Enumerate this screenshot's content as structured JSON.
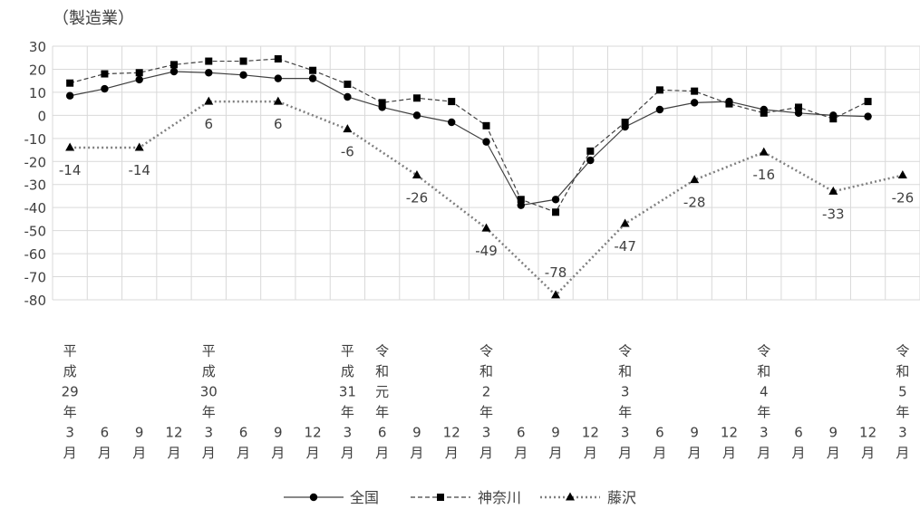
{
  "chart_data": {
    "type": "line",
    "title": "（製造業）",
    "ylim": [
      -80,
      30
    ],
    "yticks": [
      30,
      20,
      10,
      0,
      -10,
      -20,
      -30,
      -40,
      -50,
      -60,
      -70,
      -80
    ],
    "grid": true,
    "legend_position": "bottom",
    "categories": [
      "平成29年3月",
      "6月",
      "9月",
      "12月",
      "平成30年3月",
      "6月",
      "9月",
      "12月",
      "平成31年3月",
      "令和元年6月",
      "9月",
      "12月",
      "令和2年3月",
      "6月",
      "9月",
      "12月",
      "令和3年3月",
      "6月",
      "9月",
      "12月",
      "令和4年3月",
      "6月",
      "9月",
      "12月",
      "令和5年3月"
    ],
    "category_label_lines": [
      [
        "平",
        "成",
        "29",
        "年",
        "3",
        "月"
      ],
      [
        "6",
        "月"
      ],
      [
        "9",
        "月"
      ],
      [
        "12",
        "月"
      ],
      [
        "平",
        "成",
        "30",
        "年",
        "3",
        "月"
      ],
      [
        "6",
        "月"
      ],
      [
        "9",
        "月"
      ],
      [
        "12",
        "月"
      ],
      [
        "平",
        "成",
        "31",
        "年",
        "3",
        "月"
      ],
      [
        "令",
        "和",
        "元",
        "年",
        "6",
        "月"
      ],
      [
        "9",
        "月"
      ],
      [
        "12",
        "月"
      ],
      [
        "令",
        "和",
        "2",
        "年",
        "3",
        "月"
      ],
      [
        "6",
        "月"
      ],
      [
        "9",
        "月"
      ],
      [
        "12",
        "月"
      ],
      [
        "令",
        "和",
        "3",
        "年",
        "3",
        "月"
      ],
      [
        "6",
        "月"
      ],
      [
        "9",
        "月"
      ],
      [
        "12",
        "月"
      ],
      [
        "令",
        "和",
        "4",
        "年",
        "3",
        "月"
      ],
      [
        "6",
        "月"
      ],
      [
        "9",
        "月"
      ],
      [
        "12",
        "月"
      ],
      [
        "令",
        "和",
        "5",
        "年",
        "3",
        "月"
      ]
    ],
    "series": [
      {
        "name": "全国",
        "marker": "circle",
        "dash": "solid",
        "color": "#404040",
        "values": [
          8.5,
          11.5,
          15.5,
          19,
          18.5,
          17.5,
          16,
          16,
          8,
          3.5,
          0,
          -3,
          -11.5,
          -39,
          -36.5,
          -19.5,
          -5,
          2.5,
          5.5,
          6,
          2.5,
          1,
          0,
          -0.5,
          null
        ]
      },
      {
        "name": "神奈川",
        "marker": "square",
        "dash": "dashed",
        "color": "#404040",
        "values": [
          14,
          18,
          18.5,
          22,
          23.5,
          23.5,
          24.5,
          19.5,
          13.5,
          5.5,
          7.5,
          6,
          -4.5,
          -36.5,
          -42,
          -15.5,
          -3,
          11,
          10.5,
          5,
          1,
          3.5,
          -1.5,
          6,
          null
        ]
      },
      {
        "name": "藤沢",
        "marker": "triangle",
        "dash": "dotted",
        "color": "#7f7f7f",
        "values": [
          -14,
          null,
          -14,
          null,
          6,
          null,
          6,
          null,
          -6,
          null,
          -26,
          null,
          -49,
          null,
          -78,
          null,
          -47,
          null,
          -28,
          null,
          -16,
          null,
          -33,
          null,
          -26
        ],
        "labels": [
          "-14",
          null,
          "-14",
          null,
          "6",
          null,
          "6",
          null,
          "-6",
          null,
          "-26",
          null,
          "-49",
          null,
          "-78",
          null,
          "-47",
          null,
          "-28",
          null,
          "-16",
          null,
          "-33",
          null,
          "-26"
        ]
      }
    ],
    "ytick_color": "#404040",
    "grid_color": "#d9d9d9"
  }
}
